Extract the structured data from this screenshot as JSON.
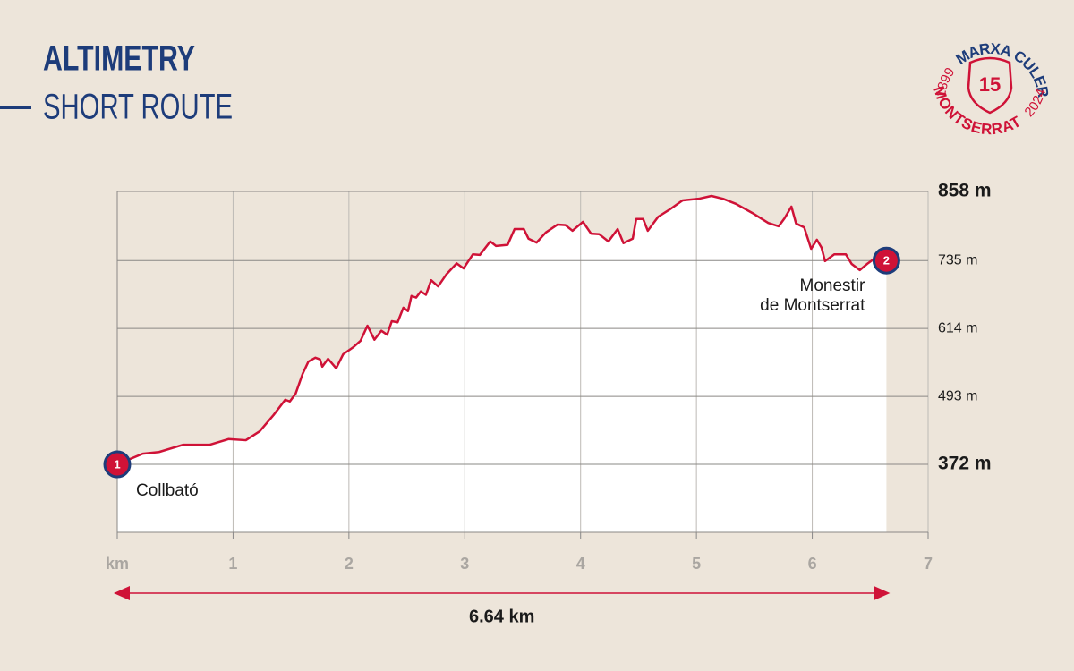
{
  "chart_data": {
    "type": "area-line",
    "title": "ALTIMETRY",
    "subtitle": "SHORT ROUTE",
    "color": "#cf1237",
    "x": [
      0,
      0.22,
      0.36,
      0.57,
      0.8,
      0.96,
      1.11,
      1.23,
      1.35,
      1.45,
      1.49,
      1.54,
      1.6,
      1.65,
      1.71,
      1.75,
      1.77,
      1.82,
      1.89,
      1.95,
      2.04,
      2.1,
      2.16,
      2.22,
      2.28,
      2.33,
      2.37,
      2.42,
      2.47,
      2.51,
      2.54,
      2.58,
      2.62,
      2.665,
      2.71,
      2.77,
      2.84,
      2.93,
      2.99,
      3.07,
      3.13,
      3.22,
      3.27,
      3.37,
      3.43,
      3.51,
      3.55,
      3.62,
      3.7,
      3.8,
      3.87,
      3.93,
      4.02,
      4.09,
      4.16,
      4.24,
      4.32,
      4.37,
      4.45,
      4.48,
      4.54,
      4.58,
      4.67,
      4.77,
      4.88,
      5.02,
      5.13,
      5.23,
      5.34,
      5.48,
      5.62,
      5.71,
      5.76,
      5.82,
      5.86,
      5.93,
      5.99,
      6.04,
      6.08,
      6.11,
      6.19,
      6.29,
      6.34,
      6.41,
      6.48,
      6.56,
      6.64
    ],
    "values": [
      372,
      391,
      394,
      407,
      407,
      417,
      415,
      431,
      460,
      487,
      484,
      498,
      533,
      555,
      562,
      559,
      546,
      560,
      543,
      568,
      581,
      592,
      619,
      594,
      610,
      603,
      627,
      625,
      651,
      645,
      672,
      669,
      680,
      674,
      700,
      689,
      710,
      730,
      721,
      746,
      745,
      769,
      761,
      763,
      791,
      791,
      774,
      767,
      785,
      799,
      798,
      788,
      804,
      783,
      782,
      769,
      791,
      766,
      774,
      809,
      809,
      788,
      813,
      826,
      842,
      845,
      850,
      845,
      836,
      820,
      802,
      796,
      810,
      831,
      801,
      794,
      756,
      772,
      758,
      734,
      746,
      746,
      729,
      718,
      730,
      742,
      735
    ],
    "xlim": [
      0,
      7
    ],
    "xticks": [
      {
        "value": 0,
        "label": "km"
      },
      1,
      2,
      3,
      4,
      5,
      6,
      7
    ],
    "ylim": [
      251,
      858
    ],
    "yticks": [
      {
        "value": 372,
        "label": "372 m"
      },
      {
        "value": 493,
        "label": "493 m"
      },
      {
        "value": 614,
        "label": "614 m"
      },
      {
        "value": 735,
        "label": "735 m"
      },
      {
        "value": 858,
        "label": "858 m"
      }
    ],
    "grid": true,
    "markers": [
      {
        "label": "1",
        "x": 0,
        "y": 372,
        "name": [
          "Collbató"
        ]
      },
      {
        "label": "2",
        "x": 6.64,
        "y": 735,
        "name": [
          "Monestir",
          "de Montserrat"
        ]
      }
    ],
    "distance_label": "6.64 km",
    "logo": {
      "left": "1899",
      "top": "MARXA CULER",
      "bottom": "MONTSERRAT",
      "right": "2024",
      "badge": "15"
    }
  }
}
